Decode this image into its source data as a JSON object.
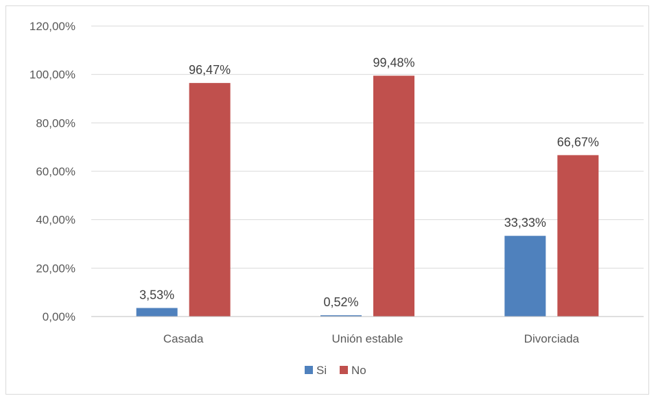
{
  "chart_data": {
    "type": "bar",
    "categories": [
      "Casada",
      "Unión estable",
      "Divorciada"
    ],
    "series": [
      {
        "name": "Si",
        "values": [
          3.53,
          0.52,
          33.33
        ],
        "labels": [
          "3,53%",
          "0,52%",
          "33,33%"
        ],
        "color": "#4f81bd"
      },
      {
        "name": "No",
        "values": [
          96.47,
          99.48,
          66.67
        ],
        "labels": [
          "96,47%",
          "99,48%",
          "66,67%"
        ],
        "color": "#c0504d"
      }
    ],
    "title": "",
    "xlabel": "",
    "ylabel": "",
    "ylim": [
      0,
      120
    ],
    "yticks": [
      0,
      20,
      40,
      60,
      80,
      100,
      120
    ],
    "ytick_labels": [
      "0,00%",
      "20,00%",
      "40,00%",
      "60,00%",
      "80,00%",
      "100,00%",
      "120,00%"
    ],
    "grid": true,
    "gridline_color": "#d9d9d9",
    "legend_position": "bottom"
  }
}
